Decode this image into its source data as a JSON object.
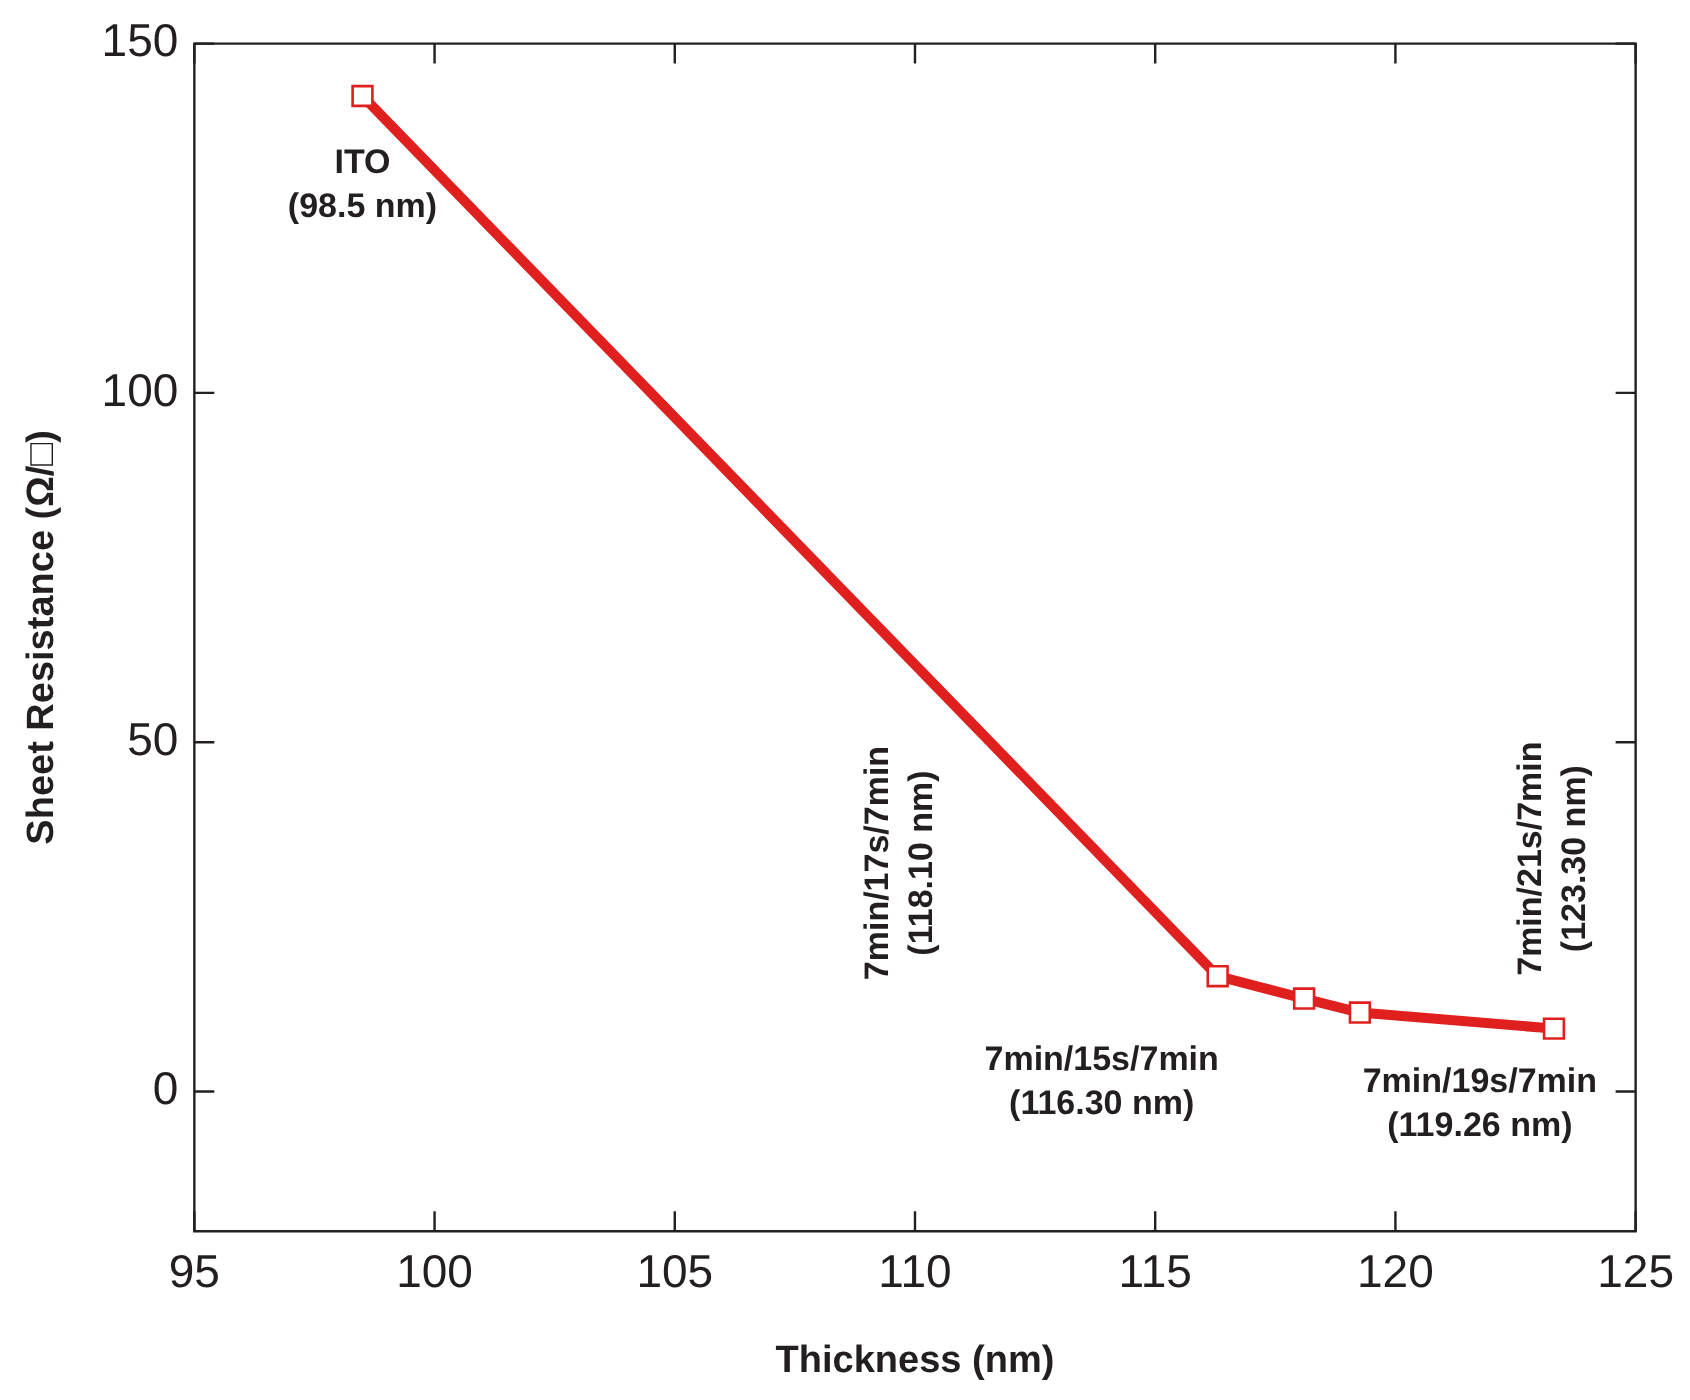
{
  "chart_data": {
    "type": "line",
    "xlabel": "Thickness (nm)",
    "ylabel": "Sheet Resistance (Ω/□)",
    "x": [
      98.5,
      116.3,
      118.1,
      119.26,
      123.3
    ],
    "series": [
      {
        "color": "#e0201f",
        "values": [
          142.5,
          16.5,
          13.3,
          11.3,
          9.0
        ]
      }
    ],
    "xlim": [
      95,
      125
    ],
    "xticks": [
      95,
      100,
      105,
      110,
      115,
      120,
      125
    ],
    "ylim": [
      -20,
      150
    ],
    "yticks": [
      0,
      50,
      100,
      150
    ],
    "grid": false,
    "legend": false,
    "marker": "square",
    "line_style": "solid",
    "annotations": [
      {
        "text": "ITO\n(98.5 nm)",
        "x": 98.5,
        "y": 142.5
      },
      {
        "text": "7min/15s/7min\n(116.30 nm)",
        "x": 116.3,
        "y": 16.5
      },
      "7min/17s/7min\n(118.10 nm)",
      {
        "text": "7min/19s/7min\n(119.26 nm)",
        "x": 119.26,
        "y": 11.3
      },
      {
        "text": "7min/21s/7min\n(123.30 nm)",
        "x": 123.3,
        "y": 9.0
      }
    ]
  }
}
